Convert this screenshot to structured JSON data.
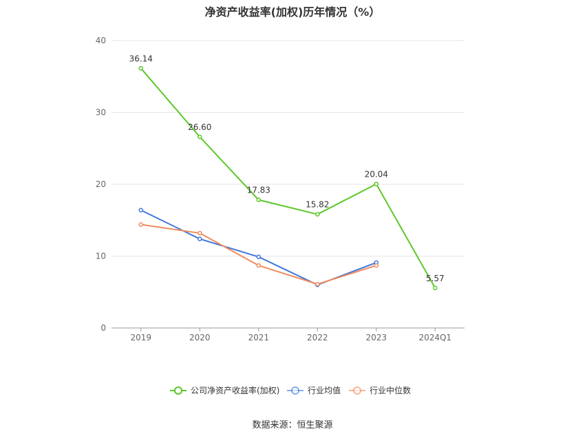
{
  "title": "净资产收益率(加权)历年情况（%）",
  "source": "数据来源：恒生聚源",
  "chart_data": {
    "type": "line",
    "categories": [
      "2019",
      "2020",
      "2021",
      "2022",
      "2023",
      "2024Q1"
    ],
    "ylim": [
      0,
      40
    ],
    "yticks": [
      0,
      10,
      20,
      30,
      40
    ],
    "grid": true,
    "legend_position": "bottom",
    "series": [
      {
        "name": "公司净资产收益率(加权)",
        "color": "#5cc728",
        "values": [
          36.14,
          26.6,
          17.83,
          15.82,
          20.04,
          5.57
        ],
        "labels": [
          "36.14",
          "26.60",
          "17.83",
          "15.82",
          "20.04",
          "5.57"
        ]
      },
      {
        "name": "行业均值",
        "color": "#3d76dd",
        "values": [
          16.4,
          12.4,
          9.9,
          6.0,
          9.1,
          null
        ]
      },
      {
        "name": "行业中位数",
        "color": "#f08a5d",
        "values": [
          14.4,
          13.2,
          8.7,
          6.1,
          8.7,
          null
        ]
      }
    ]
  }
}
